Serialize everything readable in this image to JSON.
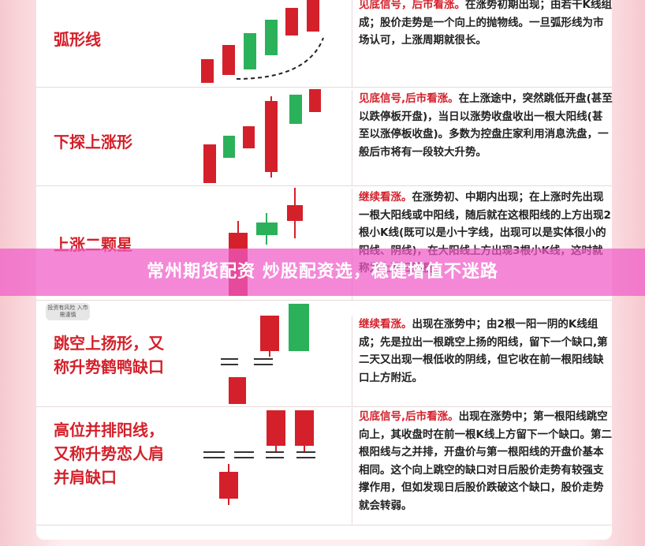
{
  "rows": [
    {
      "name": "弧形线",
      "signal": "见底信号，后市看涨。",
      "text": "在涨势初期出现；由若干K线组成；股价走势是一个向上的抛物线。一旦弧形线为市场认可，上涨周期就很长。"
    },
    {
      "name": "下探上涨形",
      "signal": "见底信号,后市看涨。",
      "text": "在上涨途中，突然跳低开盘(甚至以跌停板开盘)，当日以涨势收盘收出一根大阳线(甚至以涨停板收盘)。多数为控盘庄家利用消息洗盘，一般后市将有一段较大升势。"
    },
    {
      "name": "上涨二颗星",
      "signal": "继续看涨。",
      "text": "在涨势初、中期内出现；在上涨时先出现一根大阳线或中阳线，随后就在这根阳线的上方出现2根小K线(既可以是小十字线，出现可以是实体很小的阳线、阴线)，在大阳线上方出现3根小K线，这时就称为上涨三颗星。"
    },
    {
      "name": "跳空上扬形，又称升势鹤鸭缺口",
      "signal": "继续看涨。",
      "text": "出现在涨势中；由2根一阳一阴的K线组成；先是拉出一根跳空上扬的阳线，留下一个缺口,第二天又出现一根低收的阴线，但它收在前一根阳线缺口上方附近。"
    },
    {
      "name": "高位并排阳线，又称升势恋人肩并肩缺口",
      "signal": "见底信号,后市看涨。",
      "text": "出现在涨势中；第一根阳线跳空向上，其收盘时在前一根K线上方留下一个缺口。第二根阳线与之并排，开盘价与第一根阳线的开盘价基本相同。这个向上跳空的缺口对日后股价走势有较强支撑作用，但如发现日后股价跌破这个缺口，股价走势就会转弱。"
    }
  ],
  "badge": "投资有风险 入市需谨慎",
  "banner": "常州期货配资 炒股配资选，稳健增值不迷路"
}
